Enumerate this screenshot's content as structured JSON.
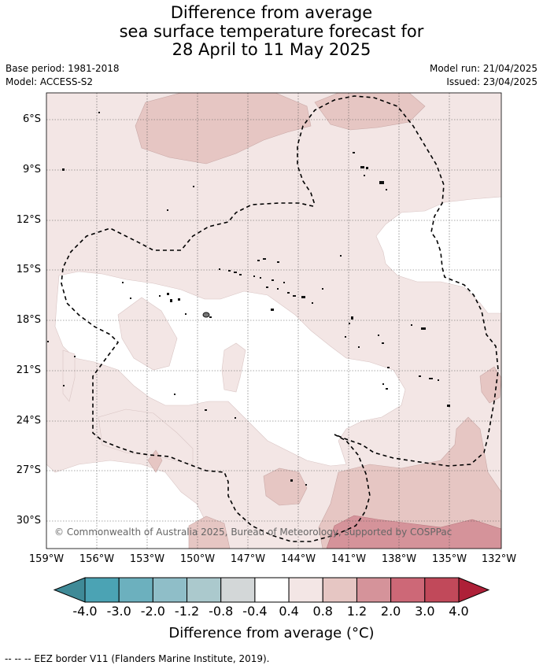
{
  "title": {
    "line1": "Difference from average",
    "line2": "sea surface temperature forecast for",
    "line3": "28 April to 11 May 2025"
  },
  "meta": {
    "base_period": "Base period: 1981-2018",
    "model": "Model: ACCESS-S2",
    "model_run": "Model run: 21/04/2025",
    "issued": "Issued: 23/04/2025"
  },
  "map": {
    "lat_labels": [
      "6°S",
      "9°S",
      "12°S",
      "15°S",
      "18°S",
      "21°S",
      "24°S",
      "27°S",
      "30°S"
    ],
    "lon_labels": [
      "159°W",
      "156°W",
      "153°W",
      "150°W",
      "147°W",
      "144°W",
      "141°W",
      "138°W",
      "135°W",
      "132°W"
    ],
    "copyright": "© Commonwealth of Australia 2025, Bureau of Meteorology, supported by COSPPac"
  },
  "colorbar": {
    "labels": [
      "-4.0",
      "-3.0",
      "-2.0",
      "-1.2",
      "-0.8",
      "-0.4",
      "0.4",
      "0.8",
      "1.2",
      "2.0",
      "3.0",
      "4.0"
    ],
    "colors": [
      "#3f8a97",
      "#4ba3b4",
      "#6cb0be",
      "#8fbec8",
      "#abc9cd",
      "#d3d7d8",
      "#ffffff",
      "#f3e6e5",
      "#e6c6c3",
      "#d5939a",
      "#cd6877",
      "#c1495a",
      "#ae2038"
    ],
    "title": "Difference from average (°C)"
  },
  "footnote": "--  --  -- EEZ border V11 (Flanders Marine Institute, 2019)."
}
